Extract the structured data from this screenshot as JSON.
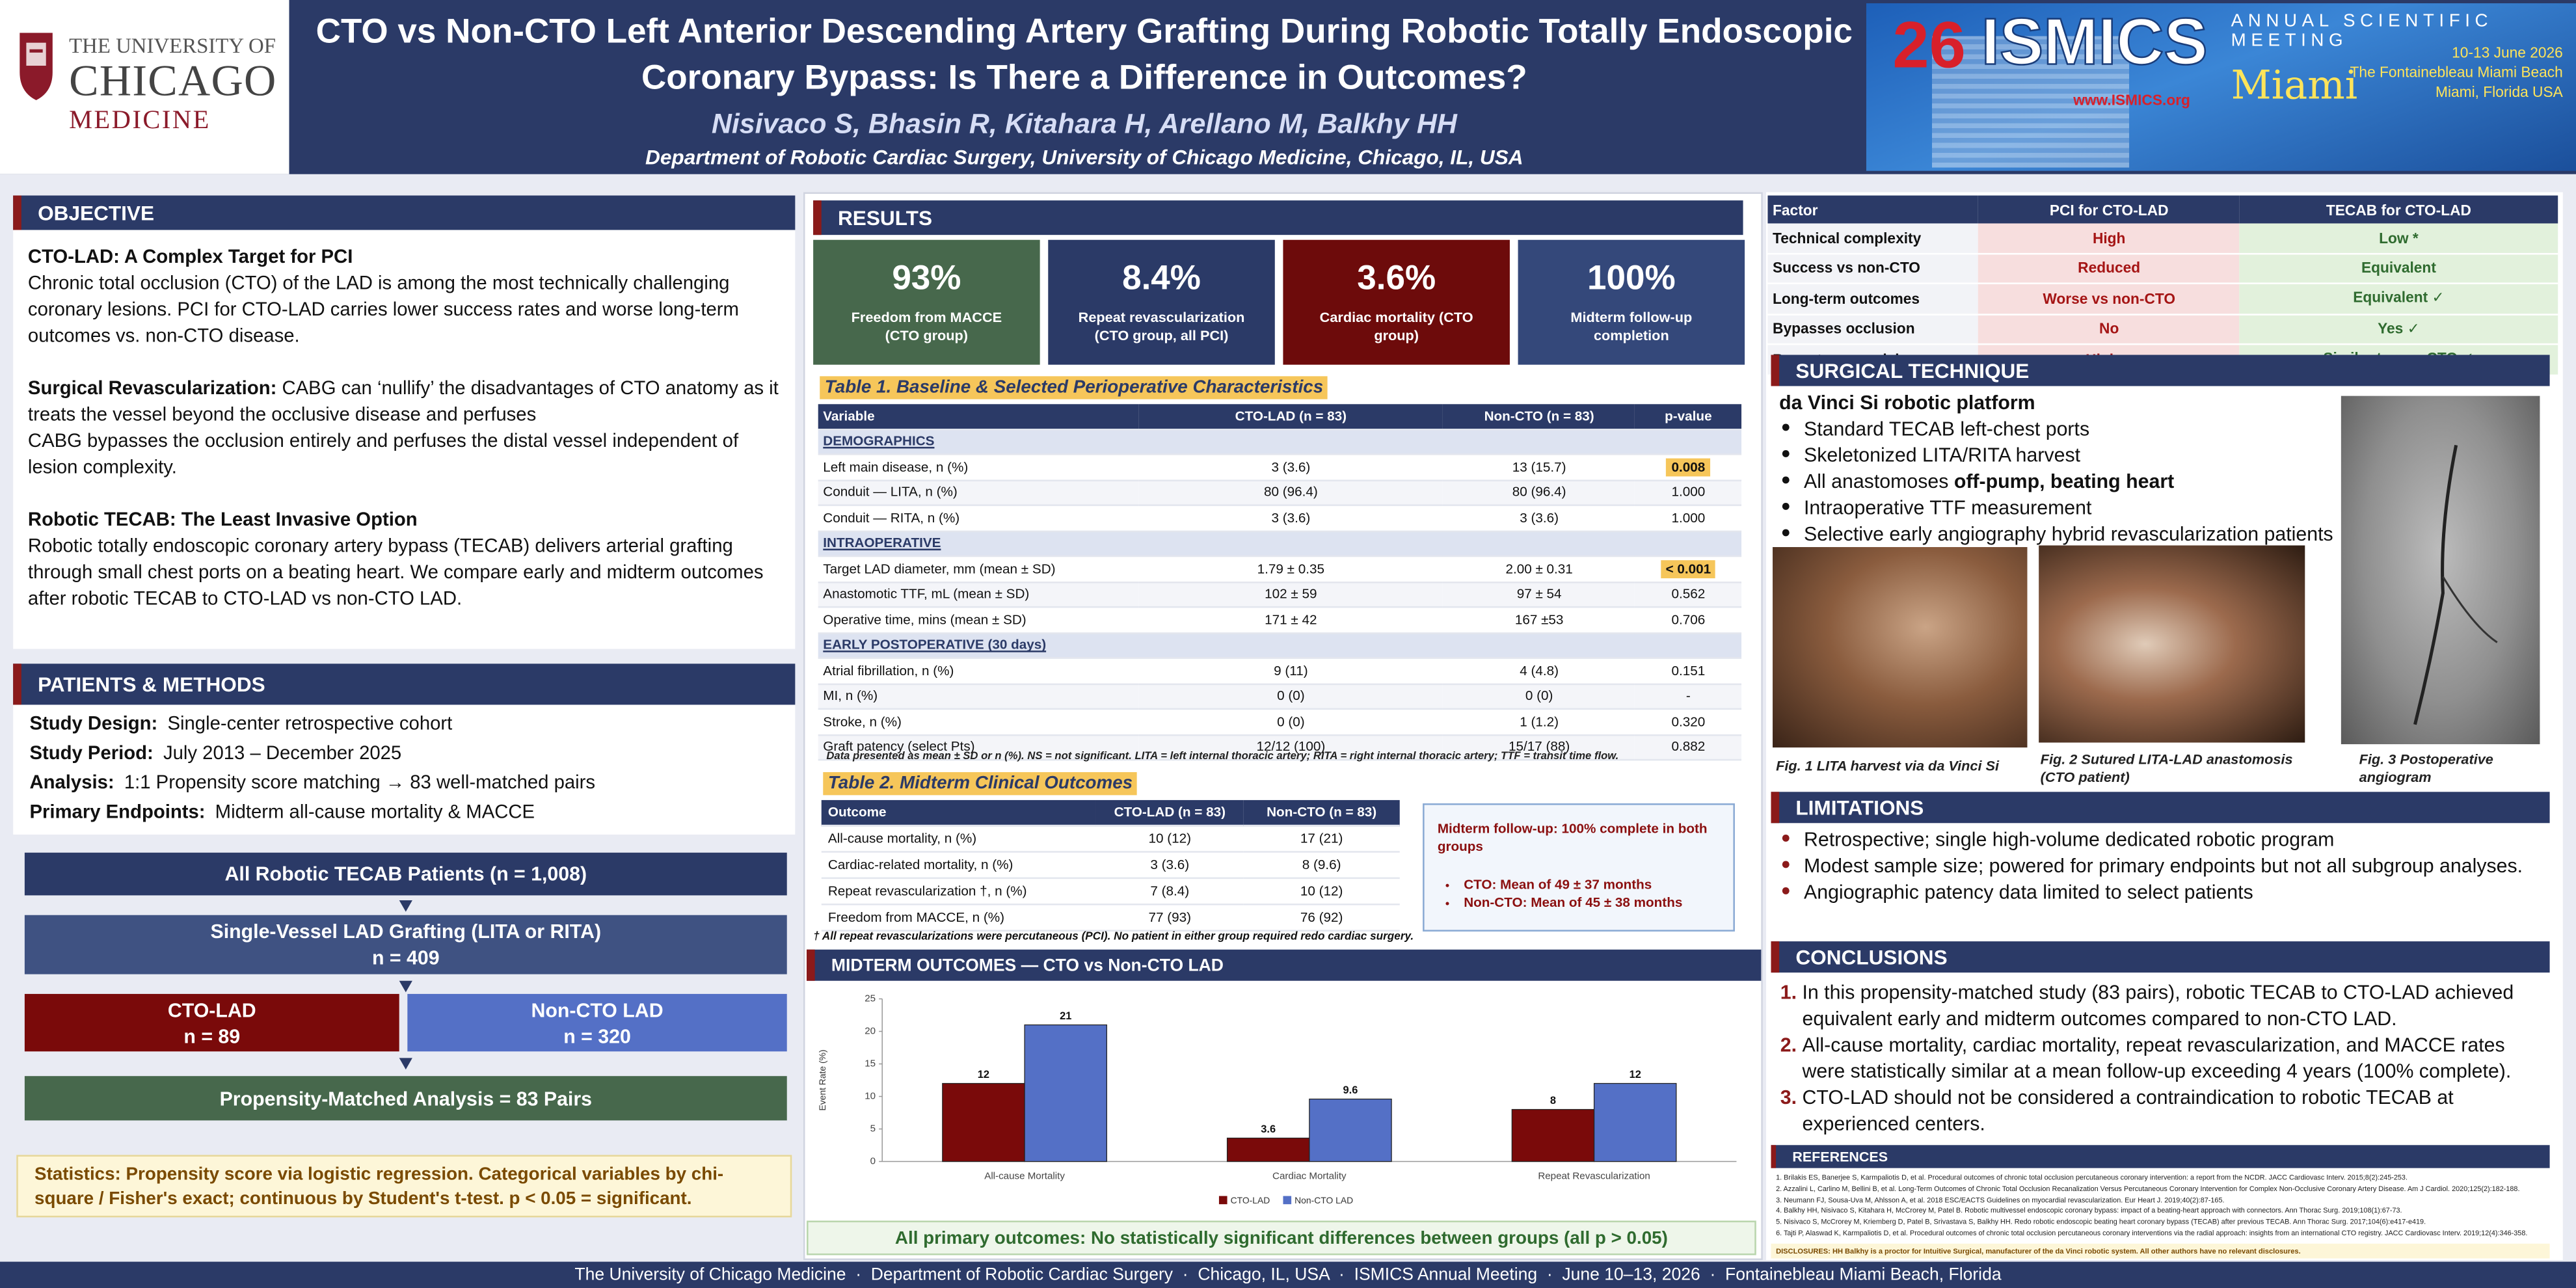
{
  "header": {
    "logo": {
      "line1": "THE UNIVERSITY OF",
      "line2": "CHICAGO",
      "line3": "MEDICINE"
    },
    "title": "CTO vs Non-CTO Left Anterior Descending Artery Grafting During Robotic Totally Endoscopic Coronary Bypass: Is There a Difference in Outcomes?",
    "authors": "Nisivaco S, Bhasin R, Kitahara H, Arellano M, Balkhy HH",
    "affiliation": "Department of Robotic Cardiac Surgery, University of Chicago Medicine, Chicago, IL, USA",
    "banner": {
      "number": "26",
      "name": "ISMICS",
      "meeting1": "ANNUAL SCIENTIFIC",
      "meeting2": "MEETING",
      "dates": "10-13 June 2026",
      "venue": "The Fontainebleau Miami Beach",
      "location": "Miami, Florida USA",
      "url": "www.ISMICS.org",
      "city": "Miami"
    }
  },
  "objective": {
    "heading": "OBJECTIVE",
    "cto_title": "CTO-LAD: A Complex Target for PCI",
    "cto_text": "Chronic total occlusion (CTO) of the LAD is among the most technically challenging coronary lesions. PCI for CTO-LAD carries lower success rates and worse long-term outcomes vs. non-CTO disease.",
    "surgical_label": "Surgical Revascularization:",
    "surgical_text": " CABG can ‘nullify’ the disadvantages of CTO anatomy as it treats the vessel beyond the occlusive disease and perfuses",
    "surgical_text2": "CABG bypasses the occlusion entirely and perfuses the distal vessel independent of lesion complexity.",
    "tecab_title": "Robotic TECAB: The Least Invasive Option",
    "tecab_text": "Robotic totally endoscopic coronary artery bypass (TECAB) delivers arterial grafting through small chest ports on a beating heart. We compare early and midterm outcomes after robotic TECAB to CTO-LAD vs non-CTO LAD."
  },
  "methods": {
    "heading": "PATIENTS & METHODS",
    "items": [
      {
        "label": "Study Design:",
        "text": "Single-center retrospective cohort"
      },
      {
        "label": "Study Period:",
        "text": "July 2013 – December 2025"
      },
      {
        "label": "Analysis:",
        "text": "1:1 Propensity score matching → 83 well-matched pairs"
      },
      {
        "label": "Primary Endpoints:",
        "text": "Midterm all-cause mortality & MACCE"
      }
    ],
    "flow": {
      "all": "All Robotic TECAB Patients  (n = 1,008)",
      "single": "Single-Vessel LAD Grafting  (LITA or RITA)",
      "single_n": "n = 409",
      "cto": "CTO-LAD",
      "cto_n": "n = 89",
      "noncto": "Non-CTO LAD",
      "noncto_n": "n = 320",
      "matched": "Propensity-Matched Analysis  = 83 Pairs"
    },
    "statistics": "Statistics: Propensity score via logistic regression. Categorical variables by chi-square / Fisher's exact; continuous by Student's t-test. p < 0.05 = significant."
  },
  "results": {
    "heading": "RESULTS",
    "stats": [
      {
        "value": "93%",
        "label": "Freedom from MACCE (CTO group)",
        "color": "#47684c"
      },
      {
        "value": "8.4%",
        "label": "Repeat revascularization (CTO group, all PCI)",
        "color": "#2b3a67"
      },
      {
        "value": "3.6%",
        "label": "Cardiac mortality (CTO group)",
        "color": "#6d0b0b"
      },
      {
        "value": "100%",
        "label": "Midterm follow-up completion",
        "color": "#34487a"
      }
    ],
    "table1": {
      "title": "Table 1.  Baseline & Selected Perioperative Characteristics",
      "headers": [
        "Variable",
        "CTO-LAD  (n = 83)",
        "Non-CTO  (n = 83)",
        "p-value"
      ],
      "sections": [
        {
          "name": "DEMOGRAPHICS",
          "rows": [
            {
              "cells": [
                "Left main disease, n (%)",
                "3  (3.6)",
                "13  (15.7)",
                "0.008"
              ],
              "highlight": true
            },
            {
              "cells": [
                "Conduit — LITA, n (%)",
                "80  (96.4)",
                "80  (96.4)",
                "1.000"
              ]
            },
            {
              "cells": [
                "Conduit — RITA, n (%)",
                "3  (3.6)",
                "3  (3.6)",
                "1.000"
              ]
            }
          ]
        },
        {
          "name": "INTRAOPERATIVE",
          "rows": [
            {
              "cells": [
                "Target LAD diameter, mm (mean ± SD)",
                "1.79 ± 0.35",
                "2.00 ± 0.31",
                "< 0.001"
              ],
              "highlight": true
            },
            {
              "cells": [
                "Anastomotic TTF, mL (mean ± SD)",
                "102 ± 59",
                "97 ± 54",
                "0.562"
              ]
            },
            {
              "cells": [
                "Operative time, mins (mean ± SD)",
                "171 ± 42",
                "167 ±53",
                "0.706"
              ]
            }
          ]
        },
        {
          "name": "EARLY POSTOPERATIVE (30 days)",
          "rows": [
            {
              "cells": [
                "Atrial fibrillation, n (%)",
                "9 (11)",
                "4 (4.8)",
                "0.151"
              ]
            },
            {
              "cells": [
                "MI, n (%)",
                "0 (0)",
                "0 (0)",
                "-"
              ]
            },
            {
              "cells": [
                "Stroke, n (%)",
                "0 (0)",
                "1 (1.2)",
                "0.320"
              ]
            },
            {
              "cells": [
                "Graft patency (select Pts)",
                "12/12 (100)",
                "15/17 (88)",
                "0.882"
              ]
            }
          ]
        }
      ],
      "note": "Data presented as mean ± SD or n (%). NS = not significant. LITA = left internal thoracic artery; RITA = right internal thoracic artery; TTF = transit time flow."
    },
    "table2": {
      "title": "Table 2.  Midterm Clinical Outcomes",
      "headers": [
        "Outcome",
        "CTO-LAD  (n = 83)",
        "Non-CTO  (n = 83)"
      ],
      "rows": [
        [
          "All-cause mortality, n (%)",
          "10  (12)",
          "17  (21)"
        ],
        [
          "Cardiac-related mortality, n (%)",
          "3 (3.6)",
          "8  (9.6)"
        ],
        [
          "Repeat revascularization †, n (%)",
          "7  (8.4)",
          "10  (12)"
        ],
        [
          "Freedom from MACCE, n (%)",
          "77  (93)",
          "76  (92)"
        ]
      ],
      "note": "† All repeat revascularizations were percutaneous (PCI). No patient in either group required redo cardiac surgery."
    },
    "followup": {
      "title": "Midterm follow-up: 100% complete in both groups",
      "items": [
        "CTO:  Mean of 49 ± 37 months",
        "Non-CTO: Mean of 45 ± 38 months"
      ]
    },
    "banner": "All primary outcomes: No statistically significant differences between groups  (all p > 0.05)"
  },
  "chart_data": {
    "type": "bar",
    "title": "MIDTERM OUTCOMES — CTO vs Non-CTO LAD",
    "ylabel": "Event Rate (%)",
    "categories": [
      "All-cause Mortality",
      "Cardiac Mortality",
      "Repeat Revascularization"
    ],
    "series": [
      {
        "name": "CTO-LAD",
        "color": "#7a0a0a",
        "values": [
          12,
          3.6,
          8
        ]
      },
      {
        "name": "Non-CTO LAD",
        "color": "#5470c6",
        "values": [
          21,
          9.6,
          12
        ]
      }
    ],
    "ylim": [
      0,
      25
    ],
    "yticks": [
      0,
      5,
      10,
      15,
      20,
      25
    ],
    "grid": false
  },
  "comparison": {
    "headers": [
      "Factor",
      "PCI for CTO-LAD",
      "TECAB for CTO-LAD"
    ],
    "rows": [
      [
        "Technical complexity",
        "High",
        "Low *"
      ],
      [
        "Success vs non-CTO",
        "Reduced",
        "Equivalent"
      ],
      [
        "Long-term outcomes",
        "Worse vs non-CTO",
        "Equivalent ✓"
      ],
      [
        "Bypasses occlusion",
        "No",
        "Yes ✓"
      ],
      [
        "Repeat revasc risk",
        "Higher",
        "Similar to non-CTO ✓"
      ]
    ]
  },
  "technique": {
    "heading": "SURGICAL TECHNIQUE",
    "platform": "da Vinci Si robotic platform",
    "bullets": [
      "Standard TECAB left-chest ports",
      "Skeletonized LITA/RITA harvest",
      {
        "text": "All anastomoses ",
        "bold": "off-pump, beating heart"
      },
      "Intraoperative TTF measurement",
      "Selective early angiography hybrid revascularization patients"
    ],
    "figures": [
      "Fig. 1  LITA harvest via da Vinci Si",
      "Fig. 2  Sutured LITA-LAD anastomosis (CTO patient)",
      "Fig. 3  Postoperative angiogram"
    ]
  },
  "limitations": {
    "heading": "LIMITATIONS",
    "bullets": [
      "Retrospective; single high-volume dedicated robotic program",
      "Modest sample size; powered for primary endpoints but not all subgroup analyses.",
      "Angiographic patency data limited to select patients"
    ]
  },
  "conclusions": {
    "heading": "CONCLUSIONS",
    "items": [
      "In this propensity-matched study (83 pairs), robotic TECAB to CTO-LAD achieved equivalent early and midterm outcomes compared to non-CTO LAD.",
      "All-cause mortality, cardiac mortality, repeat revascularization, and MACCE rates were statistically similar at a mean follow-up exceeding 4 years (100% complete).",
      "CTO-LAD should not be considered a contraindication to robotic TECAB at experienced centers."
    ]
  },
  "references": {
    "heading": "REFERENCES",
    "items": [
      "1. Brilakis ES, Banerjee S, Karmpaliotis D, et al. Procedural outcomes of chronic total occlusion percutaneous coronary intervention: a report from the NCDR. JACC Cardiovasc Interv. 2015;8(2):245-253.",
      "2. Azzalini L, Carlino M, Bellini B, et al. Long-Term Outcomes of Chronic Total Occlusion Recanalization Versus Percutaneous Coronary Intervention for Complex Non-Occlusive Coronary Artery Disease. Am J Cardiol. 2020;125(2):182-188.",
      "3. Neumann FJ, Sousa-Uva M, Ahlsson A, et al. 2018 ESC/EACTS Guidelines on myocardial revascularization. Eur Heart J. 2019;40(2):87-165.",
      "4. Balkhy HH, Nisivaco S, Kitahara H, McCrorey M, Patel B. Robotic multivessel endoscopic coronary bypass: impact of a beating-heart approach with connectors. Ann Thorac Surg. 2019;108(1):67-73.",
      "5. Nisivaco S, McCrorey M, Kriemberg D, Patel B, Srivastava S, Balkhy HH. Redo robotic endoscopic beating heart coronary bypass (TECAB) after previous TECAB. Ann Thorac Surg. 2017;104(6):e417-e419.",
      "6. Tajti P, Alaswad K, Karmpaliotis D, et al. Procedural outcomes of chronic total occlusion percutaneous coronary interventions via the radial approach: insights from an international CTO registry. JACC Cardiovasc Interv. 2019;12(4):346-358."
    ],
    "disclosures": "DISCLOSURES: HH Balkhy is a proctor for Intuitive Surgical, manufacturer of the da Vinci robotic system. All other authors have no relevant disclosures."
  },
  "footer": "The University of Chicago Medicine  ·  Department of Robotic Cardiac Surgery  ·  Chicago, IL, USA  ·  ISMICS Annual Meeting  ·  June 10–13, 2026  ·  Fontainebleau Miami Beach, Florida"
}
